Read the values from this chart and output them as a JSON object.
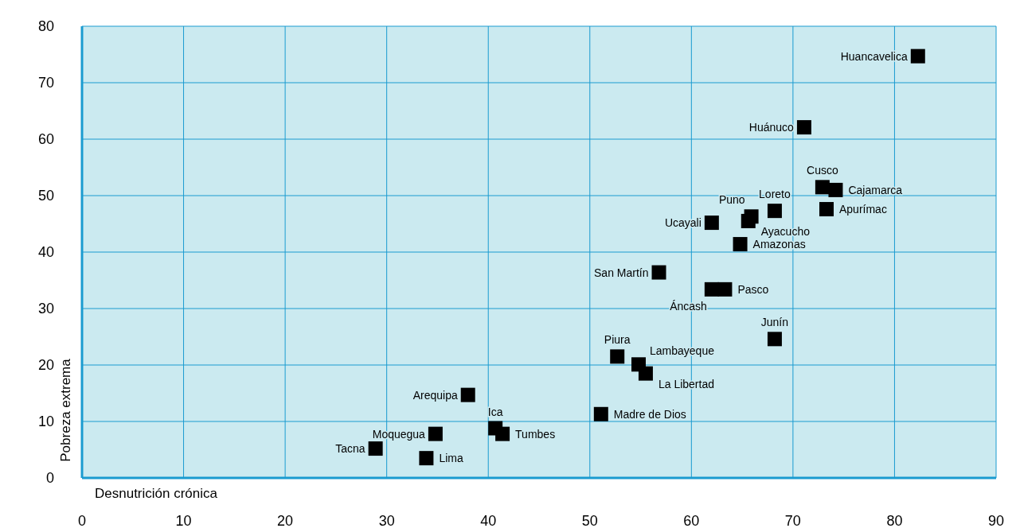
{
  "chart_data": {
    "type": "scatter",
    "xlabel": "Desnutrición crónica",
    "ylabel": "Pobreza extrema",
    "xlim": [
      0,
      90
    ],
    "xticks": [
      0,
      10,
      20,
      30,
      40,
      50,
      60,
      70,
      80,
      90
    ],
    "ylim": [
      0,
      80
    ],
    "yticks": [
      0,
      10,
      20,
      30,
      40,
      50,
      60,
      70,
      80
    ],
    "grid": true,
    "legend": false,
    "marker": "square",
    "series": [
      {
        "name": "Huancavelica",
        "color": "#000000",
        "x": [
          82.3
        ],
        "values": [
          74.7
        ]
      },
      {
        "name": "Huánuco",
        "color": "#000000",
        "x": [
          71.1
        ],
        "values": [
          62.1
        ]
      },
      {
        "name": "Cusco",
        "color": "#000000",
        "x": [
          72.9
        ],
        "values": [
          51.5
        ]
      },
      {
        "name": "Cajamarca",
        "color": "#000000",
        "x": [
          74.2
        ],
        "values": [
          51.0
        ]
      },
      {
        "name": "Apurímac",
        "color": "#000000",
        "x": [
          73.3
        ],
        "values": [
          47.6
        ]
      },
      {
        "name": "Loreto",
        "color": "#000000",
        "x": [
          68.2
        ],
        "values": [
          47.3
        ]
      },
      {
        "name": "Puno",
        "color": "#000000",
        "x": [
          65.9
        ],
        "values": [
          46.3
        ]
      },
      {
        "name": "Ayacucho",
        "color": "#000000",
        "x": [
          65.6
        ],
        "values": [
          45.5
        ]
      },
      {
        "name": "Ucayali",
        "color": "#000000",
        "x": [
          62.0
        ],
        "values": [
          45.2
        ]
      },
      {
        "name": "Amazonas",
        "color": "#000000",
        "x": [
          64.8
        ],
        "values": [
          41.4
        ]
      },
      {
        "name": "San Martín",
        "color": "#000000",
        "x": [
          56.8
        ],
        "values": [
          36.4
        ]
      },
      {
        "name": "Áncash",
        "color": "#000000",
        "x": [
          62.0
        ],
        "values": [
          33.4
        ]
      },
      {
        "name": "Pasco",
        "color": "#000000",
        "x": [
          63.3
        ],
        "values": [
          33.4
        ]
      },
      {
        "name": "Junín",
        "color": "#000000",
        "x": [
          68.2
        ],
        "values": [
          24.6
        ]
      },
      {
        "name": "Piura",
        "color": "#000000",
        "x": [
          52.7
        ],
        "values": [
          21.5
        ]
      },
      {
        "name": "Lambayeque",
        "color": "#000000",
        "x": [
          54.8
        ],
        "values": [
          20.1
        ]
      },
      {
        "name": "La Libertad",
        "color": "#000000",
        "x": [
          55.5
        ],
        "values": [
          18.5
        ]
      },
      {
        "name": "Arequipa",
        "color": "#000000",
        "x": [
          38.0
        ],
        "values": [
          14.7
        ]
      },
      {
        "name": "Madre de Dios",
        "color": "#000000",
        "x": [
          51.1
        ],
        "values": [
          11.3
        ]
      },
      {
        "name": "Ica",
        "color": "#000000",
        "x": [
          40.7
        ],
        "values": [
          8.8
        ]
      },
      {
        "name": "Tumbes",
        "color": "#000000",
        "x": [
          41.4
        ],
        "values": [
          7.8
        ]
      },
      {
        "name": "Moquegua",
        "color": "#000000",
        "x": [
          34.8
        ],
        "values": [
          7.8
        ]
      },
      {
        "name": "Tacna",
        "color": "#000000",
        "x": [
          28.9
        ],
        "values": [
          5.2
        ]
      },
      {
        "name": "Lima",
        "color": "#000000",
        "x": [
          33.9
        ],
        "values": [
          3.5
        ]
      }
    ]
  }
}
